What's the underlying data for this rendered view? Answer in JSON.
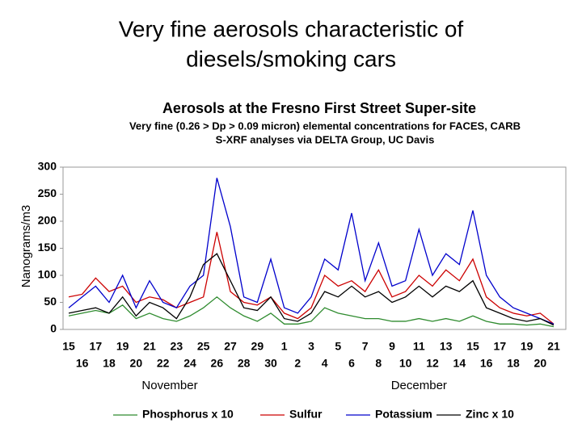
{
  "title_lines": [
    "Very fine aerosols characteristic of",
    "diesels/smoking cars"
  ],
  "chart_data": {
    "type": "line",
    "title": "Aerosols at the Fresno First Street Super-site",
    "subtitle_lines": [
      "Very fine (0.26 > Dp > 0.09 micron) elemental concentrations for FACES, CARB",
      "S-XRF analyses via DELTA Group, UC Davis"
    ],
    "y_label": "Nanograms/m3",
    "months": [
      "November",
      "December"
    ],
    "categories": [
      "15",
      "16",
      "17",
      "18",
      "19",
      "20",
      "21",
      "22",
      "23",
      "24",
      "25",
      "26",
      "27",
      "28",
      "29",
      "30",
      "1",
      "2",
      "3",
      "4",
      "5",
      "6",
      "7",
      "8",
      "9",
      "10",
      "11",
      "12",
      "13",
      "14",
      "15",
      "16",
      "17",
      "18",
      "19",
      "20",
      "21"
    ],
    "ylim": [
      0,
      300
    ],
    "yticks": [
      0,
      50,
      100,
      150,
      200,
      250,
      300
    ],
    "series": [
      {
        "name": "Phosphorus x 10",
        "color": "#2e8b2e",
        "values": [
          25,
          30,
          35,
          30,
          45,
          20,
          30,
          20,
          15,
          25,
          40,
          60,
          40,
          25,
          15,
          30,
          10,
          10,
          15,
          40,
          30,
          25,
          20,
          20,
          15,
          15,
          20,
          15,
          20,
          15,
          25,
          15,
          10,
          10,
          8,
          10,
          5
        ]
      },
      {
        "name": "Sulfur",
        "color": "#cc0000",
        "values": [
          60,
          65,
          95,
          70,
          80,
          50,
          60,
          55,
          40,
          50,
          60,
          180,
          70,
          50,
          45,
          60,
          30,
          20,
          40,
          100,
          80,
          90,
          70,
          110,
          60,
          70,
          100,
          80,
          110,
          90,
          130,
          60,
          40,
          30,
          25,
          30,
          10
        ]
      },
      {
        "name": "Potassium",
        "color": "#0000cc",
        "values": [
          40,
          60,
          80,
          50,
          100,
          40,
          90,
          50,
          40,
          80,
          100,
          280,
          190,
          60,
          50,
          130,
          40,
          30,
          60,
          130,
          110,
          215,
          90,
          160,
          80,
          90,
          185,
          100,
          140,
          120,
          220,
          100,
          60,
          40,
          30,
          20,
          10
        ]
      },
      {
        "name": "Zinc x 10",
        "color": "#000000",
        "values": [
          30,
          35,
          40,
          30,
          60,
          25,
          50,
          40,
          20,
          60,
          120,
          140,
          90,
          40,
          35,
          60,
          20,
          15,
          30,
          70,
          60,
          80,
          60,
          70,
          50,
          60,
          80,
          60,
          80,
          70,
          90,
          40,
          30,
          20,
          15,
          20,
          8
        ]
      }
    ]
  }
}
